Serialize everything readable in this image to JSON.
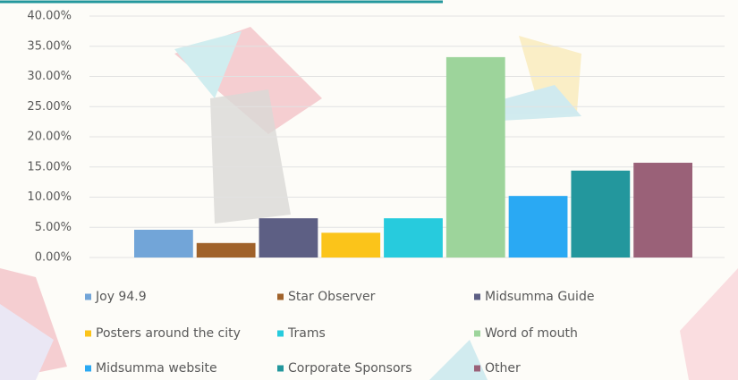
{
  "chart_data": {
    "type": "bar",
    "series": [
      {
        "name": "Joy 94.9",
        "color": "#72a5d8",
        "values": [
          4.6
        ]
      },
      {
        "name": "Star Observer",
        "color": "#a0622a",
        "values": [
          2.4
        ]
      },
      {
        "name": "Midsumma Guide",
        "color": "#5d5f84",
        "values": [
          6.5
        ]
      },
      {
        "name": "Posters around the city",
        "color": "#fbc41a",
        "values": [
          4.1
        ]
      },
      {
        "name": "Trams",
        "color": "#27cbdd",
        "values": [
          6.5
        ]
      },
      {
        "name": "Word of mouth",
        "color": "#9dd49b",
        "values": [
          33.2
        ]
      },
      {
        "name": "Midsumma website",
        "color": "#2aa9f3",
        "values": [
          10.2
        ]
      },
      {
        "name": "Corporate Sponsors",
        "color": "#23979d",
        "values": [
          14.4
        ]
      },
      {
        "name": "Other",
        "color": "#9a6178",
        "values": [
          15.7
        ]
      }
    ],
    "ylim": [
      0,
      40
    ],
    "yticks": [
      {
        "value": 0,
        "label": "0.00%"
      },
      {
        "value": 5,
        "label": "5.00%"
      },
      {
        "value": 10,
        "label": "10.00%"
      },
      {
        "value": 15,
        "label": "15.00%"
      },
      {
        "value": 20,
        "label": "20.00%"
      },
      {
        "value": 25,
        "label": "25.00%"
      },
      {
        "value": 30,
        "label": "30.00%"
      },
      {
        "value": 35,
        "label": "35.00%"
      },
      {
        "value": 40,
        "label": "40.00%"
      }
    ],
    "grid": true
  }
}
